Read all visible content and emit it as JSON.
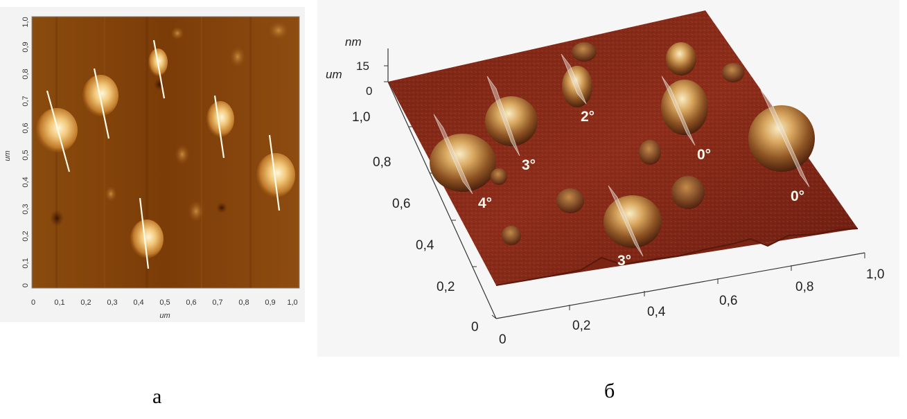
{
  "panel_a": {
    "x_ticks": [
      "0",
      "0,1",
      "0,2",
      "0,3",
      "0,4",
      "0,5",
      "0,6",
      "0,7",
      "0,8",
      "0,9",
      "1,0"
    ],
    "y_ticks": [
      "0",
      "0,1",
      "0,2",
      "0,3",
      "0,4",
      "0,5",
      "0,6",
      "0,7",
      "0,8",
      "0,9",
      "1,0"
    ],
    "x_axis_label": "um",
    "y_axis_label": "um",
    "caption": "а"
  },
  "panel_b": {
    "z_unit": "nm",
    "z_ticks": [
      "15",
      "0"
    ],
    "y_unit": "um",
    "y_ticks": [
      "1,0",
      "0,8",
      "0,6",
      "0,4",
      "0,2",
      "0"
    ],
    "x_ticks": [
      "0",
      "0,2",
      "0,4",
      "0,6",
      "0,8",
      "1,0"
    ],
    "angle_labels": [
      "2°",
      "3°",
      "0°",
      "4°",
      "0°",
      "3°"
    ],
    "caption": "б"
  },
  "colors": {
    "surface_dark": "#6e1c10",
    "surface_mid": "#8a2a18",
    "bump_light": "#f4e4b0",
    "line": "#fffbe6"
  }
}
